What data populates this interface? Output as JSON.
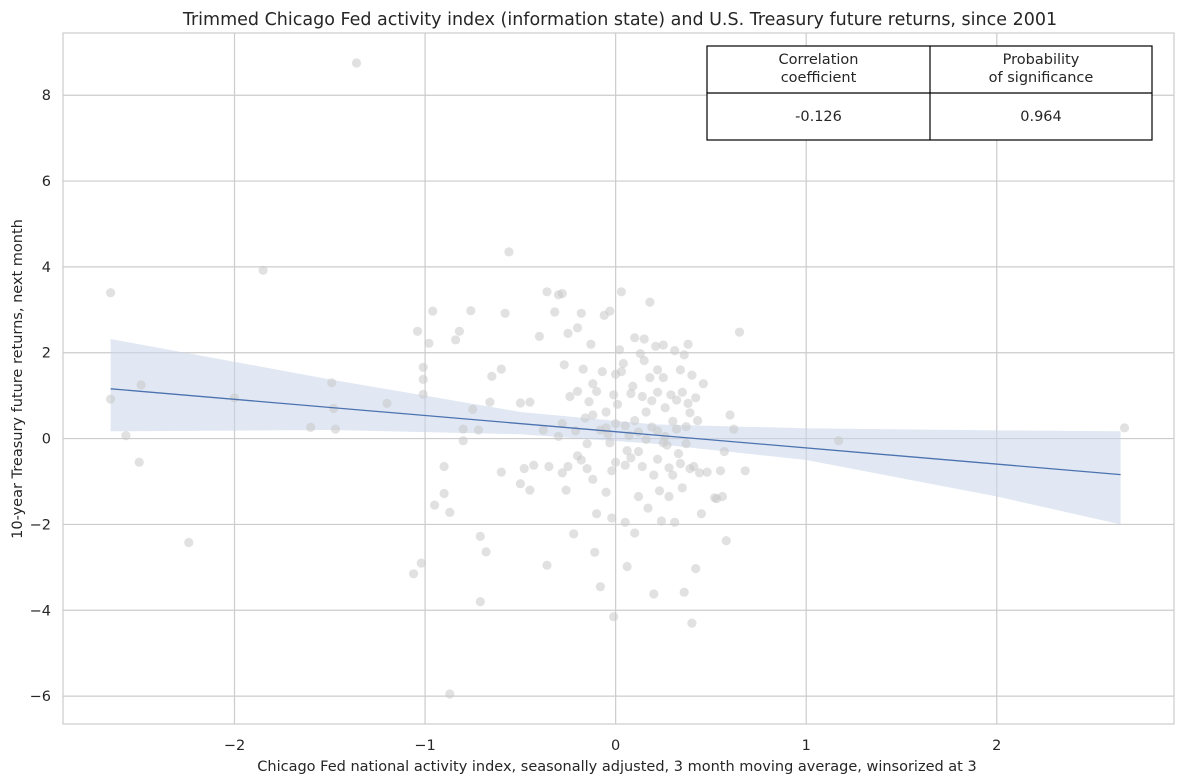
{
  "chart_data": {
    "type": "scatter",
    "title": "Trimmed Chicago Fed activity index (information state) and U.S. Treasury future returns, since 2001",
    "xlabel": "Chicago Fed national activity index, seasonally adjusted, 3 month moving average, winsorized at 3",
    "ylabel": "10-year Treasury future returns, next month",
    "xlim": [
      -2.9,
      2.93
    ],
    "ylim": [
      -6.65,
      9.45
    ],
    "xticks": [
      -2,
      -1,
      0,
      1,
      2
    ],
    "xtick_labels": [
      "−2",
      "−1",
      "0",
      "1",
      "2"
    ],
    "yticks": [
      -6,
      -4,
      -2,
      0,
      2,
      4,
      6,
      8
    ],
    "ytick_labels": [
      "−6",
      "−4",
      "−2",
      "0",
      "2",
      "4",
      "6",
      "8"
    ],
    "grid": true,
    "colors": {
      "points": "#c8c8c8",
      "line": "#4c72b0",
      "band": "#c9d5ea",
      "grid": "#cccccc",
      "spine": "#cccccc"
    },
    "regression": {
      "x": [
        -2.65,
        2.65
      ],
      "y": [
        1.16,
        -0.84
      ]
    },
    "confidence_band": {
      "x": [
        -2.65,
        -1.5,
        -0.5,
        0.2,
        1.0,
        2.0,
        2.65
      ],
      "upper": [
        2.32,
        1.38,
        0.62,
        0.33,
        0.24,
        0.19,
        0.17
      ],
      "lower": [
        0.17,
        0.2,
        0.1,
        -0.12,
        -0.5,
        -1.35,
        -2.0
      ]
    },
    "points": [
      [
        -2.65,
        3.4
      ],
      [
        -2.65,
        0.92
      ],
      [
        -2.57,
        0.07
      ],
      [
        -2.49,
        1.25
      ],
      [
        -2.5,
        -0.55
      ],
      [
        -2.24,
        -2.42
      ],
      [
        -1.85,
        3.92
      ],
      [
        -2.0,
        0.95
      ],
      [
        -1.6,
        0.26
      ],
      [
        -1.49,
        1.3
      ],
      [
        -1.48,
        0.7
      ],
      [
        -1.47,
        0.22
      ],
      [
        -1.36,
        8.75
      ],
      [
        -1.2,
        0.82
      ],
      [
        -1.06,
        -3.15
      ],
      [
        -1.04,
        2.5
      ],
      [
        -1.02,
        -2.9
      ],
      [
        -1.01,
        1.66
      ],
      [
        -1.01,
        1.38
      ],
      [
        -1.01,
        1.03
      ],
      [
        -0.98,
        2.22
      ],
      [
        -0.96,
        2.97
      ],
      [
        -0.95,
        -1.55
      ],
      [
        -0.9,
        -0.65
      ],
      [
        -0.9,
        -1.28
      ],
      [
        -0.87,
        -1.72
      ],
      [
        -0.87,
        -5.95
      ],
      [
        -0.84,
        2.3
      ],
      [
        -0.82,
        2.5
      ],
      [
        -0.8,
        0.22
      ],
      [
        -0.8,
        -0.05
      ],
      [
        -0.76,
        2.98
      ],
      [
        -0.75,
        0.68
      ],
      [
        -0.72,
        0.2
      ],
      [
        -0.71,
        -2.28
      ],
      [
        -0.71,
        -3.8
      ],
      [
        -0.68,
        -2.64
      ],
      [
        -0.66,
        0.85
      ],
      [
        -0.65,
        1.45
      ],
      [
        -0.56,
        4.35
      ],
      [
        -0.6,
        1.62
      ],
      [
        -0.6,
        -0.78
      ],
      [
        -0.58,
        2.92
      ],
      [
        -0.5,
        0.83
      ],
      [
        -0.5,
        -1.05
      ],
      [
        -0.48,
        -0.7
      ],
      [
        -0.45,
        0.85
      ],
      [
        -0.45,
        -1.2
      ],
      [
        -0.43,
        -0.62
      ],
      [
        -0.4,
        2.38
      ],
      [
        -0.38,
        0.2
      ],
      [
        -0.36,
        3.42
      ],
      [
        -0.36,
        -2.95
      ],
      [
        -0.35,
        -0.65
      ],
      [
        -0.32,
        2.95
      ],
      [
        -0.3,
        0.05
      ],
      [
        -0.3,
        3.35
      ],
      [
        -0.28,
        3.38
      ],
      [
        -0.28,
        0.35
      ],
      [
        -0.28,
        -0.8
      ],
      [
        -0.27,
        1.72
      ],
      [
        -0.26,
        -1.2
      ],
      [
        -0.25,
        2.45
      ],
      [
        -0.25,
        -0.65
      ],
      [
        -0.24,
        0.98
      ],
      [
        -0.22,
        -2.22
      ],
      [
        -0.21,
        0.18
      ],
      [
        -0.2,
        2.58
      ],
      [
        -0.2,
        1.1
      ],
      [
        -0.2,
        -0.4
      ],
      [
        -0.18,
        2.92
      ],
      [
        -0.17,
        1.62
      ],
      [
        -0.16,
        0.48
      ],
      [
        -0.15,
        -0.12
      ],
      [
        -0.14,
        0.86
      ],
      [
        -0.13,
        2.2
      ],
      [
        -0.12,
        1.28
      ],
      [
        -0.12,
        -0.95
      ],
      [
        -0.11,
        -2.65
      ],
      [
        -0.1,
        1.1
      ],
      [
        -0.1,
        -1.75
      ],
      [
        -0.08,
        0.2
      ],
      [
        -0.08,
        -3.45
      ],
      [
        -0.07,
        1.56
      ],
      [
        -0.06,
        2.87
      ],
      [
        -0.05,
        0.62
      ],
      [
        -0.05,
        -1.25
      ],
      [
        -0.04,
        0.1
      ],
      [
        -0.03,
        -0.1
      ],
      [
        -0.03,
        2.97
      ],
      [
        -0.02,
        -1.85
      ],
      [
        -0.02,
        -0.75
      ],
      [
        -0.01,
        1.02
      ],
      [
        -0.01,
        -4.15
      ],
      [
        0.0,
        0.35
      ],
      [
        0.0,
        -0.55
      ],
      [
        0.01,
        0.8
      ],
      [
        0.02,
        2.07
      ],
      [
        0.03,
        3.42
      ],
      [
        0.03,
        1.56
      ],
      [
        0.04,
        1.75
      ],
      [
        0.05,
        -0.62
      ],
      [
        0.05,
        -1.95
      ],
      [
        0.06,
        -2.98
      ],
      [
        0.06,
        -0.28
      ],
      [
        0.07,
        0.07
      ],
      [
        0.08,
        1.05
      ],
      [
        0.08,
        -0.45
      ],
      [
        0.09,
        1.22
      ],
      [
        0.1,
        2.35
      ],
      [
        0.1,
        0.42
      ],
      [
        0.1,
        -2.2
      ],
      [
        0.12,
        0.15
      ],
      [
        0.12,
        -1.35
      ],
      [
        0.13,
        1.98
      ],
      [
        0.14,
        0.98
      ],
      [
        0.14,
        -0.65
      ],
      [
        0.15,
        2.32
      ],
      [
        0.15,
        1.82
      ],
      [
        0.16,
        0.62
      ],
      [
        0.16,
        -0.02
      ],
      [
        0.17,
        -1.62
      ],
      [
        0.18,
        3.18
      ],
      [
        0.18,
        1.42
      ],
      [
        0.19,
        0.88
      ],
      [
        0.19,
        0.27
      ],
      [
        0.2,
        -0.85
      ],
      [
        0.2,
        -3.62
      ],
      [
        0.21,
        2.15
      ],
      [
        0.22,
        1.08
      ],
      [
        0.22,
        0.18
      ],
      [
        0.22,
        -0.48
      ],
      [
        0.23,
        -1.22
      ],
      [
        0.24,
        -1.92
      ],
      [
        0.25,
        2.18
      ],
      [
        0.25,
        1.42
      ],
      [
        0.26,
        0.72
      ],
      [
        0.26,
        0.05
      ],
      [
        0.27,
        -0.15
      ],
      [
        0.28,
        -0.68
      ],
      [
        0.28,
        -1.35
      ],
      [
        0.29,
        1.02
      ],
      [
        0.3,
        0.4
      ],
      [
        0.3,
        -0.85
      ],
      [
        0.31,
        2.05
      ],
      [
        0.31,
        -1.95
      ],
      [
        0.32,
        0.9
      ],
      [
        0.32,
        0.22
      ],
      [
        0.33,
        -0.35
      ],
      [
        0.34,
        1.6
      ],
      [
        0.34,
        -0.58
      ],
      [
        0.35,
        1.08
      ],
      [
        0.35,
        -1.15
      ],
      [
        0.36,
        1.95
      ],
      [
        0.36,
        -3.58
      ],
      [
        0.37,
        0.28
      ],
      [
        0.37,
        -0.12
      ],
      [
        0.38,
        0.82
      ],
      [
        0.38,
        2.2
      ],
      [
        0.39,
        0.6
      ],
      [
        0.39,
        -0.7
      ],
      [
        0.4,
        -4.3
      ],
      [
        0.4,
        1.48
      ],
      [
        0.41,
        -0.65
      ],
      [
        0.42,
        0.95
      ],
      [
        0.42,
        -3.03
      ],
      [
        0.43,
        0.42
      ],
      [
        0.44,
        -0.8
      ],
      [
        0.45,
        -1.75
      ],
      [
        0.46,
        1.28
      ],
      [
        0.48,
        -0.78
      ],
      [
        0.52,
        -1.38
      ],
      [
        0.55,
        -0.75
      ],
      [
        0.56,
        -1.35
      ],
      [
        0.58,
        -2.38
      ],
      [
        0.6,
        0.55
      ],
      [
        0.62,
        0.22
      ],
      [
        0.65,
        2.48
      ],
      [
        0.68,
        -0.75
      ],
      [
        1.17,
        -0.05
      ],
      [
        2.67,
        0.25
      ],
      [
        0.57,
        -0.3
      ],
      [
        0.53,
        -1.4
      ],
      [
        -0.15,
        -0.7
      ],
      [
        0.0,
        1.5
      ],
      [
        0.12,
        -0.3
      ],
      [
        -0.18,
        -0.5
      ],
      [
        0.05,
        0.3
      ],
      [
        0.22,
        1.6
      ],
      [
        -0.05,
        0.25
      ],
      [
        0.25,
        -0.1
      ],
      [
        -0.12,
        0.55
      ]
    ],
    "stats_table": {
      "headers": [
        "Correlation\ncoefficient",
        "Probability\nof significance"
      ],
      "values": [
        "-0.126",
        "0.964"
      ]
    }
  }
}
